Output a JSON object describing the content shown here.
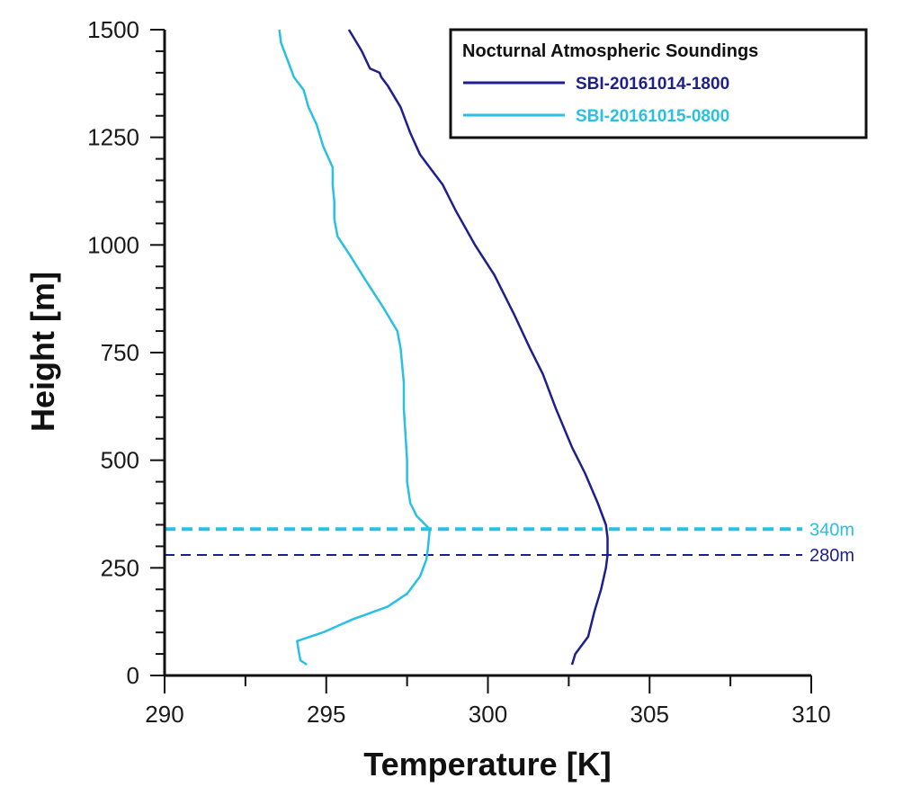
{
  "chart_data": {
    "type": "line",
    "title": "",
    "xlabel": "Temperature [K]",
    "ylabel": "Height [m]",
    "xlim": [
      290,
      310
    ],
    "ylim": [
      0,
      1500
    ],
    "xticks": [
      290,
      295,
      300,
      305,
      310
    ],
    "yticks": [
      0,
      250,
      500,
      750,
      1000,
      1250,
      1500
    ],
    "x_minor_step": 2.5,
    "y_minor_step": 50,
    "legend": {
      "title": "Nocturnal Atmospheric Soundings",
      "placement": "top-right"
    },
    "series": [
      {
        "name": "SBI-20161014-1800",
        "color": "#1c1f8c",
        "points": [
          [
            302.6,
            25
          ],
          [
            302.7,
            50
          ],
          [
            303.1,
            90
          ],
          [
            303.3,
            150
          ],
          [
            303.5,
            200
          ],
          [
            303.65,
            250
          ],
          [
            303.7,
            280
          ],
          [
            303.7,
            320
          ],
          [
            303.65,
            350
          ],
          [
            303.4,
            400
          ],
          [
            303.0,
            470
          ],
          [
            302.6,
            530
          ],
          [
            302.1,
            620
          ],
          [
            301.7,
            700
          ],
          [
            301.3,
            760
          ],
          [
            300.8,
            840
          ],
          [
            300.2,
            930
          ],
          [
            299.6,
            1000
          ],
          [
            299.0,
            1080
          ],
          [
            298.6,
            1140
          ],
          [
            298.3,
            1170
          ],
          [
            297.9,
            1210
          ],
          [
            297.6,
            1260
          ],
          [
            297.3,
            1320
          ],
          [
            296.9,
            1370
          ],
          [
            296.7,
            1390
          ],
          [
            296.65,
            1400
          ],
          [
            296.35,
            1410
          ],
          [
            296.1,
            1450
          ],
          [
            295.7,
            1500
          ]
        ]
      },
      {
        "name": "SBI-20161015-0800",
        "color": "#29c0e2",
        "points": [
          [
            294.4,
            25
          ],
          [
            294.2,
            35
          ],
          [
            294.15,
            55
          ],
          [
            294.1,
            80
          ],
          [
            294.9,
            100
          ],
          [
            295.8,
            130
          ],
          [
            296.9,
            160
          ],
          [
            297.5,
            190
          ],
          [
            297.9,
            230
          ],
          [
            298.1,
            270
          ],
          [
            298.15,
            300
          ],
          [
            298.2,
            340
          ],
          [
            297.8,
            370
          ],
          [
            297.6,
            400
          ],
          [
            297.5,
            450
          ],
          [
            297.5,
            500
          ],
          [
            297.45,
            560
          ],
          [
            297.4,
            620
          ],
          [
            297.4,
            680
          ],
          [
            297.3,
            760
          ],
          [
            297.2,
            800
          ],
          [
            296.8,
            850
          ],
          [
            296.2,
            920
          ],
          [
            295.7,
            980
          ],
          [
            295.35,
            1020
          ],
          [
            295.25,
            1060
          ],
          [
            295.25,
            1100
          ],
          [
            295.2,
            1140
          ],
          [
            295.2,
            1180
          ],
          [
            294.9,
            1230
          ],
          [
            294.7,
            1280
          ],
          [
            294.45,
            1320
          ],
          [
            294.3,
            1360
          ],
          [
            294.0,
            1390
          ],
          [
            293.8,
            1430
          ],
          [
            293.6,
            1470
          ],
          [
            293.55,
            1500
          ]
        ]
      }
    ],
    "reference_lines": [
      {
        "y": 340,
        "label": "340m",
        "color": "#29c0e2",
        "style": "dashed"
      },
      {
        "y": 280,
        "label": "280m",
        "color": "#1c1f8c",
        "style": "dashed"
      }
    ]
  }
}
